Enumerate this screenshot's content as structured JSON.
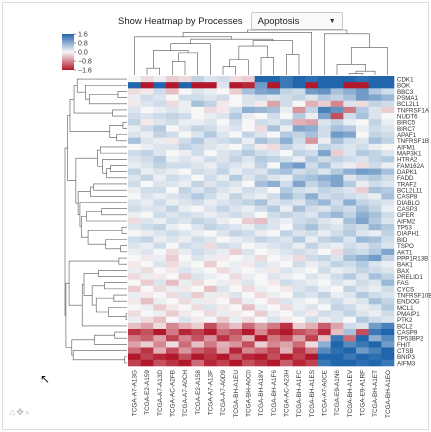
{
  "controls": {
    "label": "Show Heatmap by Processes",
    "selected": "Apoptosis"
  },
  "icons": {
    "select_caret": "chevron-down-icon",
    "mode_bar": "pan-zoom-toolbar-icon",
    "cursor": "mouse-pointer-icon"
  },
  "mode_bar_glyphs": "⌂✥⌕",
  "cursor_glyph": "↖",
  "chart_data": {
    "type": "heatmap",
    "title": "",
    "xlabel": "",
    "ylabel": "",
    "colorbar": {
      "ticks": [
        1.6,
        0.8,
        0.0,
        -0.8,
        -1.6
      ],
      "tick_labels": [
        "1.6",
        "0.8",
        "0.0",
        "−0.8",
        "−1.6"
      ],
      "range": [
        -1.6,
        1.6
      ]
    },
    "colorscale": {
      "high": "#2166ac",
      "mid": "#f7f7f7",
      "low": "#b2182b"
    },
    "samples": [
      "TCGA-A7-A13G",
      "TCGA-E2-A159",
      "TCGA-A7-A13D",
      "TCGA-AC-A2FB",
      "TCGA-A7-A0CH",
      "TCGA-E2-A158",
      "TCGA-A7-A13F",
      "TCGA-A7-A0D9",
      "TCGA-BH-A1EU",
      "TCGA-BH-A0C0",
      "TCGA-BH-A18V",
      "TCGA-BH-A1F6",
      "TCGA-AC-A23H",
      "TCGA-BH-A1FC",
      "TCGA-BH-A1ES",
      "TCGA-A7-A0CE",
      "TCGA-E9-A1N6",
      "TCGA-BH-A1EV",
      "TCGA-E9-A1RF",
      "TCGA-BH-A1ET",
      "TCGA-BH-A1EO"
    ],
    "xtick_labels": [
      "TCGA-A7-A13G",
      "TCGA-E2-A159",
      "TCGA-A7-A13D",
      "TCGA-AC-A2FB",
      "TCGA-A7-A0CH",
      "TCGA-E2-A158",
      "TCGA-A7-A13F",
      "TCGA-A7-A0D9",
      "TCGA-BH-A1EU",
      "TCGA-BH-A0C0",
      "TCGA-BH-A18V",
      "TCGA-BH-A1F6",
      "TCGA-AC-A23H",
      "TCGA-BH-A1FC",
      "TCGA-BH-A1ES",
      "TCGA-A7-A0CE",
      "TCGA-E9-A1N6",
      "TCGA-BH-A1EV",
      "TCGA-E9-A1RF",
      "TCGA-BH-A1ET",
      "TCGA-BH-A1EO"
    ],
    "genes": [
      "CDK1",
      "BOK",
      "BBC3",
      "PSMA1",
      "BCL2L1",
      "TNFRSF1A",
      "NUDT6",
      "BIRC5",
      "BIRC7",
      "APAF1",
      "TNFRSF1B",
      "AIFM1",
      "MAP3K1",
      "HTRA2",
      "FAM162A",
      "DAPK1",
      "FADD",
      "TRAF2",
      "BCL2L11",
      "CASP8",
      "DIABLO",
      "CASP3",
      "GFER",
      "AIFM2",
      "TP53",
      "DIAPH1",
      "BID",
      "TSPO",
      "AKT1",
      "PPP1R13B",
      "BAK1",
      "BAX",
      "PRELID1",
      "FAS",
      "CYCS",
      "TNFRSF10B",
      "ENDOG",
      "MCL1",
      "PMAIP1",
      "PTK2",
      "BCL2",
      "CASP9",
      "TP53BP2",
      "FHIT",
      "CTSB",
      "BNIP3",
      "AIFM3"
    ],
    "ytick_labels": [
      "CDK1",
      "BOK",
      "BBC3",
      "PSMA1",
      "BCL2L1",
      "TNFRSF1A",
      "NUDT6",
      "BIRC5",
      "BIRC7",
      "APAF1",
      "TNFRSF1B",
      "AIFM1",
      "MAP3K1",
      "HTRA2",
      "FAM162A",
      "DAPK1",
      "FADD",
      "TRAF2",
      "BCL2L11",
      "CASP8",
      "DIABLO",
      "CASP3",
      "GFER",
      "AIFM2",
      "TP53",
      "DIAPH1",
      "BID",
      "TSPO",
      "AKT1",
      "PPP1R13B",
      "BAK1",
      "BAX",
      "PRELID1",
      "FAS",
      "CYCS",
      "TNFRSF10B",
      "ENDOG",
      "MCL1",
      "PMAIP1",
      "PTK2",
      "BCL2",
      "CASP9",
      "TP53BP2",
      "FHIT",
      "CTSB",
      "BNIP3",
      "AIFM3"
    ],
    "z": [
      [
        0.0,
        -0.2,
        0.1,
        -0.3,
        -0.2,
        0.4,
        0.2,
        0.3,
        -0.2,
        -0.3,
        1.6,
        1.6,
        1.4,
        1.6,
        1.5,
        1.6,
        1.6,
        1.6,
        1.5,
        1.6,
        1.6
      ],
      [
        1.6,
        -1.6,
        1.6,
        -1.6,
        1.6,
        -1.6,
        -1.6,
        0.2,
        -1.6,
        -1.5,
        1.0,
        -1.6,
        1.4,
        1.6,
        -1.6,
        1.6,
        1.6,
        -1.6,
        -1.6,
        1.6,
        1.6
      ],
      [
        -0.2,
        -0.1,
        0.3,
        -0.4,
        0.0,
        0.2,
        0.1,
        0.0,
        -0.3,
        0.6,
        0.9,
        1.0,
        0.4,
        0.3,
        1.0,
        1.1,
        0.6,
        0.8,
        1.0,
        0.5,
        0.3
      ],
      [
        0.1,
        0.3,
        0.2,
        0.0,
        0.3,
        0.3,
        0.2,
        0.3,
        0.0,
        0.2,
        0.3,
        0.2,
        0.3,
        0.4,
        0.2,
        0.5,
        0.4,
        0.6,
        1.0,
        0.9,
        0.7
      ],
      [
        -0.1,
        0.2,
        0.3,
        -0.2,
        0.1,
        0.6,
        0.4,
        -0.1,
        0.0,
        0.2,
        -0.1,
        -0.6,
        0.3,
        0.0,
        -0.5,
        -0.3,
        -0.8,
        0.2,
        -0.2,
        0.4,
        0.3
      ],
      [
        0.2,
        0.0,
        0.1,
        0.2,
        0.1,
        0.0,
        -0.2,
        -0.1,
        0.3,
        0.8,
        0.7,
        0.6,
        0.1,
        -0.7,
        0.4,
        1.3,
        1.1,
        -0.9,
        0.5,
        0.2,
        -0.3
      ],
      [
        0.3,
        0.2,
        0.3,
        0.4,
        0.3,
        0.0,
        0.1,
        0.2,
        0.5,
        0.1,
        0.0,
        0.3,
        0.0,
        0.5,
        0.1,
        0.9,
        -1.2,
        0.3,
        0.6,
        0.2,
        0.0
      ],
      [
        0.4,
        -0.1,
        0.2,
        0.3,
        0.1,
        0.1,
        0.2,
        0.0,
        0.3,
        0.0,
        0.3,
        0.2,
        0.4,
        -0.5,
        -0.6,
        0.2,
        0.4,
        0.1,
        0.0,
        0.4,
        0.1
      ],
      [
        0.1,
        0.3,
        0.5,
        0.0,
        0.2,
        0.4,
        0.3,
        0.1,
        0.2,
        0.0,
        -0.2,
        0.6,
        0.1,
        0.9,
        0.8,
        0.3,
        0.6,
        0.5,
        0.1,
        0.3,
        0.2
      ],
      [
        0.2,
        0.1,
        0.4,
        0.3,
        0.0,
        0.2,
        0.5,
        0.2,
        0.0,
        0.4,
        0.2,
        0.0,
        0.5,
        0.4,
        0.6,
        0.3,
        1.0,
        0.9,
        0.0,
        0.4,
        0.3
      ],
      [
        0.6,
        0.2,
        0.1,
        -0.1,
        0.3,
        0.5,
        0.2,
        0.3,
        0.4,
        0.1,
        0.6,
        0.4,
        0.8,
        0.3,
        -0.7,
        0.1,
        0.6,
        0.3,
        0.2,
        0.6,
        0.4
      ],
      [
        0.0,
        0.1,
        0.2,
        0.2,
        0.4,
        0.3,
        0.2,
        0.1,
        0.0,
        0.3,
        -0.1,
        -0.2,
        0.4,
        0.2,
        0.1,
        0.4,
        0.3,
        0.2,
        0.3,
        0.1,
        0.0
      ],
      [
        0.3,
        0.4,
        0.2,
        0.0,
        0.1,
        0.3,
        0.0,
        0.2,
        0.3,
        0.5,
        0.3,
        0.2,
        0.0,
        0.4,
        0.3,
        0.9,
        -0.3,
        0.2,
        0.5,
        0.4,
        0.2
      ],
      [
        0.2,
        0.3,
        0.5,
        0.1,
        0.2,
        0.1,
        0.3,
        0.2,
        0.4,
        0.2,
        0.5,
        0.4,
        0.3,
        0.1,
        0.5,
        0.3,
        0.4,
        0.3,
        0.2,
        0.4,
        0.5
      ],
      [
        0.1,
        0.2,
        0.4,
        0.3,
        0.3,
        0.2,
        0.1,
        0.3,
        0.2,
        0.1,
        0.4,
        0.0,
        0.8,
        1.0,
        0.3,
        0.6,
        0.2,
        0.1,
        -0.2,
        0.3,
        0.1
      ],
      [
        0.4,
        0.1,
        0.2,
        0.1,
        0.0,
        0.3,
        0.2,
        0.4,
        0.1,
        0.3,
        0.2,
        0.5,
        0.6,
        0.3,
        0.4,
        0.2,
        0.5,
        0.8,
        1.0,
        0.9,
        0.6
      ],
      [
        0.2,
        0.4,
        0.1,
        0.3,
        0.2,
        0.0,
        0.3,
        0.1,
        0.5,
        0.2,
        0.4,
        0.2,
        0.1,
        0.5,
        0.6,
        0.8,
        0.9,
        0.2,
        0.4,
        0.5,
        0.3
      ],
      [
        0.3,
        0.0,
        0.2,
        0.2,
        0.1,
        0.4,
        0.2,
        0.3,
        0.2,
        0.0,
        0.6,
        0.8,
        0.3,
        0.9,
        0.4,
        0.6,
        0.9,
        0.5,
        0.1,
        0.3,
        0.2
      ],
      [
        0.1,
        0.3,
        0.3,
        0.0,
        0.4,
        0.2,
        0.4,
        0.2,
        0.1,
        0.3,
        0.2,
        0.0,
        0.5,
        0.3,
        0.2,
        0.4,
        0.3,
        0.2,
        -0.3,
        0.6,
        0.5
      ],
      [
        0.0,
        0.2,
        0.1,
        0.2,
        0.3,
        0.5,
        0.3,
        0.1,
        0.4,
        0.2,
        0.1,
        0.3,
        0.7,
        0.4,
        0.8,
        0.3,
        0.4,
        0.3,
        0.2,
        0.1,
        0.6
      ],
      [
        0.2,
        0.1,
        0.3,
        0.1,
        0.2,
        0.3,
        0.1,
        0.2,
        0.3,
        0.4,
        0.6,
        0.2,
        0.3,
        0.2,
        0.5,
        0.7,
        0.3,
        0.8,
        0.4,
        0.3,
        0.2
      ],
      [
        0.3,
        0.2,
        0.2,
        0.4,
        0.1,
        0.0,
        0.2,
        0.4,
        0.2,
        0.1,
        0.3,
        0.5,
        0.1,
        0.6,
        0.3,
        0.2,
        0.4,
        0.3,
        0.6,
        0.4,
        0.1
      ],
      [
        0.1,
        0.0,
        0.3,
        0.2,
        0.3,
        0.2,
        0.1,
        0.2,
        0.3,
        0.2,
        0.0,
        0.3,
        0.4,
        0.3,
        0.2,
        0.5,
        0.7,
        0.4,
        0.8,
        0.6,
        0.3
      ],
      [
        -0.2,
        0.2,
        0.1,
        0.3,
        0.2,
        0.4,
        0.3,
        0.1,
        0.0,
        -0.3,
        -0.4,
        0.2,
        0.1,
        0.3,
        0.4,
        0.2,
        0.1,
        0.6,
        0.9,
        0.5,
        0.2
      ],
      [
        0.2,
        0.3,
        0.4,
        0.1,
        0.0,
        0.2,
        0.4,
        0.3,
        0.2,
        0.1,
        0.3,
        0.2,
        0.0,
        0.4,
        0.6,
        0.3,
        0.2,
        0.4,
        0.3,
        0.7,
        0.5
      ],
      [
        0.0,
        0.1,
        0.2,
        0.3,
        0.2,
        0.1,
        0.0,
        0.2,
        0.4,
        0.3,
        0.1,
        0.0,
        0.4,
        0.2,
        0.3,
        0.1,
        0.3,
        0.5,
        0.2,
        0.1,
        0.4
      ],
      [
        0.3,
        0.4,
        0.1,
        0.2,
        0.1,
        0.3,
        0.2,
        0.0,
        0.1,
        0.2,
        0.4,
        0.3,
        0.2,
        0.5,
        0.1,
        0.4,
        0.5,
        0.2,
        0.7,
        0.6,
        0.3
      ],
      [
        0.2,
        0.1,
        0.3,
        0.0,
        0.3,
        0.2,
        -0.2,
        0.3,
        0.2,
        0.0,
        0.1,
        0.2,
        0.3,
        0.1,
        0.4,
        0.2,
        0.1,
        0.3,
        0.2,
        0.4,
        0.2
      ],
      [
        0.1,
        0.2,
        0.0,
        -0.2,
        0.1,
        0.3,
        0.2,
        0.1,
        -0.3,
        0.2,
        0.0,
        0.1,
        0.2,
        0.3,
        0.2,
        0.0,
        -0.2,
        0.4,
        0.3,
        0.5,
        0.9
      ],
      [
        0.0,
        -0.1,
        0.1,
        -0.3,
        0.0,
        0.2,
        0.1,
        -0.1,
        0.0,
        0.1,
        -0.2,
        0.0,
        0.1,
        -0.2,
        0.3,
        0.4,
        0.2,
        0.6,
        0.8,
        1.0,
        0.4
      ],
      [
        -0.1,
        0.0,
        0.2,
        -0.2,
        0.1,
        0.0,
        -0.3,
        0.0,
        0.1,
        -0.1,
        0.2,
        0.1,
        0.0,
        0.3,
        0.1,
        0.2,
        0.4,
        0.3,
        0.5,
        0.2,
        0.1
      ],
      [
        0.1,
        -0.2,
        0.0,
        -0.1,
        0.2,
        0.1,
        0.0,
        -0.2,
        0.1,
        0.0,
        0.1,
        -0.1,
        0.2,
        0.1,
        0.0,
        0.3,
        0.1,
        0.2,
        0.4,
        0.3,
        0.2
      ],
      [
        -0.2,
        0.1,
        -0.1,
        0.0,
        -0.3,
        0.2,
        0.1,
        0.0,
        -0.2,
        0.1,
        0.0,
        0.2,
        0.1,
        0.0,
        0.2,
        0.1,
        0.3,
        0.5,
        0.2,
        0.6,
        0.4
      ],
      [
        0.0,
        -0.3,
        0.2,
        -0.4,
        0.1,
        -0.2,
        0.0,
        0.1,
        -0.1,
        0.2,
        0.0,
        -0.1,
        0.3,
        0.2,
        0.1,
        0.0,
        0.2,
        0.1,
        0.3,
        0.2,
        0.7
      ],
      [
        -0.3,
        0.0,
        -0.2,
        0.1,
        -0.1,
        0.0,
        -0.4,
        0.2,
        0.0,
        -0.2,
        0.1,
        0.0,
        -0.1,
        0.2,
        0.3,
        0.1,
        0.0,
        0.4,
        0.2,
        0.1,
        0.3
      ],
      [
        0.1,
        -0.1,
        0.0,
        -0.2,
        0.2,
        -0.3,
        0.1,
        -0.1,
        0.2,
        0.0,
        -0.2,
        0.1,
        0.0,
        0.3,
        0.2,
        0.4,
        0.1,
        0.2,
        0.5,
        0.3,
        0.2
      ],
      [
        -0.1,
        -0.4,
        0.1,
        0.0,
        -0.2,
        0.1,
        -0.1,
        0.0,
        -0.3,
        0.1,
        0.0,
        -0.2,
        0.2,
        0.1,
        0.0,
        0.2,
        0.3,
        0.1,
        0.2,
        0.6,
        0.4
      ],
      [
        0.0,
        0.1,
        -0.3,
        -0.1,
        0.0,
        -0.2,
        0.2,
        -0.1,
        0.0,
        -0.4,
        0.1,
        0.0,
        -0.2,
        0.1,
        0.2,
        0.0,
        0.4,
        0.3,
        0.1,
        0.2,
        0.5
      ],
      [
        -0.2,
        0.0,
        0.1,
        -0.3,
        -0.1,
        0.0,
        -0.2,
        0.1,
        -0.1,
        0.0,
        -0.3,
        0.1,
        0.0,
        0.2,
        -0.1,
        0.3,
        0.2,
        0.4,
        0.2,
        0.1,
        0.3
      ],
      [
        0.1,
        -0.2,
        -0.4,
        0.0,
        0.2,
        -0.1,
        0.0,
        -0.3,
        0.1,
        -0.2,
        0.0,
        0.2,
        -0.1,
        0.0,
        0.3,
        0.1,
        0.2,
        0.0,
        0.5,
        0.3,
        0.2
      ],
      [
        -0.4,
        -0.6,
        -0.2,
        -0.8,
        -0.5,
        -0.3,
        -1.2,
        -0.7,
        -0.4,
        -1.0,
        -0.6,
        -0.9,
        -1.4,
        -0.3,
        -0.5,
        -1.1,
        -0.6,
        0.3,
        0.2,
        1.0,
        1.3
      ],
      [
        -1.4,
        -1.2,
        -1.6,
        -0.9,
        -1.5,
        -1.3,
        -1.6,
        -1.0,
        -1.2,
        -1.6,
        -0.8,
        -1.4,
        -1.6,
        -1.2,
        -1.0,
        -1.5,
        -0.4,
        0.6,
        -1.2,
        1.4,
        1.6
      ],
      [
        -0.9,
        -1.1,
        -0.6,
        -1.3,
        -0.8,
        -1.2,
        -0.7,
        -1.4,
        -1.0,
        -0.5,
        -1.6,
        -0.9,
        -1.2,
        -0.6,
        -1.3,
        -0.4,
        1.4,
        -1.0,
        1.6,
        0.8,
        1.2
      ],
      [
        -0.6,
        -0.3,
        -0.8,
        -0.2,
        -1.0,
        -0.4,
        -0.9,
        -0.5,
        -0.7,
        -1.2,
        -0.3,
        -0.8,
        -0.6,
        -1.0,
        -0.2,
        0.8,
        1.6,
        1.2,
        1.4,
        1.6,
        1.0
      ],
      [
        -1.0,
        -1.4,
        -0.5,
        -1.2,
        -0.7,
        -1.1,
        -1.3,
        -0.6,
        -1.5,
        -0.8,
        -1.0,
        -1.3,
        -0.5,
        -1.4,
        -0.9,
        1.2,
        1.5,
        1.6,
        1.0,
        1.3,
        1.6
      ],
      [
        -1.6,
        -1.3,
        -1.5,
        -1.6,
        -1.2,
        -1.6,
        -1.4,
        -1.6,
        -1.1,
        -1.5,
        -1.6,
        -1.2,
        -1.6,
        -1.3,
        -1.6,
        1.6,
        1.6,
        1.4,
        1.6,
        1.5,
        1.6
      ],
      [
        -1.3,
        -1.6,
        -1.2,
        -1.4,
        -1.6,
        -1.0,
        -1.5,
        -1.3,
        -1.6,
        -1.2,
        -1.4,
        -1.6,
        -1.1,
        -1.5,
        -1.3,
        1.4,
        1.6,
        1.6,
        1.5,
        1.6,
        1.4
      ]
    ]
  }
}
